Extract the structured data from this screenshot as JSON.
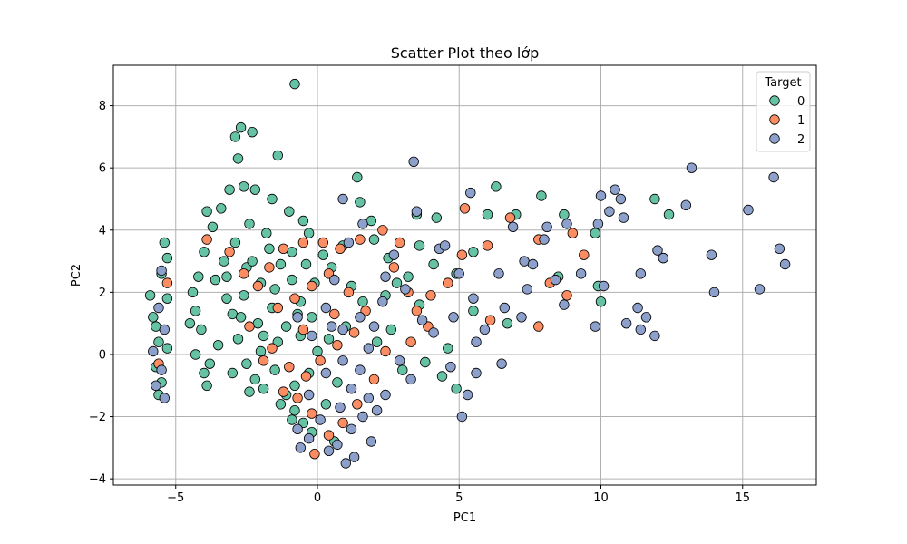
{
  "chart_data": {
    "type": "scatter",
    "title": "Scatter Plot theo lớp",
    "xlabel": "PC1",
    "ylabel": "PC2",
    "xlim": [
      -7.2,
      17.6
    ],
    "ylim": [
      -4.2,
      9.3
    ],
    "xticks": [
      -5,
      0,
      5,
      10,
      15
    ],
    "yticks": [
      -4,
      -2,
      0,
      2,
      4,
      6,
      8
    ],
    "xtick_labels": [
      "−5",
      "0",
      "5",
      "10",
      "15"
    ],
    "ytick_labels": [
      "−4",
      "−2",
      "0",
      "2",
      "4",
      "6",
      "8"
    ],
    "grid": true,
    "legend": {
      "title": "Target",
      "position": "top-right",
      "entries": [
        "0",
        "1",
        "2"
      ]
    },
    "series": [
      {
        "name": "0",
        "color": "#66c2a5",
        "points": [
          [
            -0.8,
            8.7
          ],
          [
            -2.7,
            7.3
          ],
          [
            -2.9,
            7.0
          ],
          [
            -2.3,
            7.15
          ],
          [
            -2.8,
            6.3
          ],
          [
            -1.4,
            6.4
          ],
          [
            1.4,
            5.7
          ],
          [
            6.3,
            5.4
          ],
          [
            7.9,
            5.1
          ],
          [
            11.9,
            5.0
          ],
          [
            12.4,
            4.5
          ],
          [
            12.2,
            3.1
          ],
          [
            3.5,
            4.5
          ],
          [
            4.2,
            4.4
          ],
          [
            6.0,
            4.5
          ],
          [
            7.0,
            4.5
          ],
          [
            8.7,
            4.5
          ],
          [
            9.8,
            3.9
          ],
          [
            9.9,
            2.2
          ],
          [
            8.5,
            2.5
          ],
          [
            10.0,
            1.7
          ],
          [
            5.5,
            3.3
          ],
          [
            3.6,
            3.5
          ],
          [
            4.1,
            2.9
          ],
          [
            3.2,
            2.5
          ],
          [
            2.8,
            2.3
          ],
          [
            2.4,
            1.9
          ],
          [
            6.7,
            1.0
          ],
          [
            5.5,
            1.4
          ],
          [
            4.6,
            0.2
          ],
          [
            4.4,
            -0.7
          ],
          [
            3.8,
            -0.25
          ],
          [
            4.9,
            -1.1
          ],
          [
            3.6,
            1.6
          ],
          [
            4.9,
            2.6
          ],
          [
            -5.9,
            1.9
          ],
          [
            -5.8,
            1.2
          ],
          [
            -5.7,
            0.9
          ],
          [
            -5.6,
            0.4
          ],
          [
            -5.7,
            -0.4
          ],
          [
            -5.6,
            -1.3
          ],
          [
            -5.4,
            3.6
          ],
          [
            -5.3,
            3.1
          ],
          [
            -5.5,
            2.6
          ],
          [
            -5.3,
            1.8
          ],
          [
            -5.3,
            0.2
          ],
          [
            -5.5,
            -0.9
          ],
          [
            -4.4,
            2.0
          ],
          [
            -4.3,
            1.4
          ],
          [
            -4.1,
            0.8
          ],
          [
            -4.3,
            0.0
          ],
          [
            -4.0,
            -0.6
          ],
          [
            -3.9,
            -1.0
          ],
          [
            -4.0,
            3.3
          ],
          [
            -3.7,
            4.1
          ],
          [
            -3.4,
            4.7
          ],
          [
            -3.1,
            5.3
          ],
          [
            -2.6,
            5.4
          ],
          [
            -2.2,
            5.3
          ],
          [
            -1.6,
            5.0
          ],
          [
            -1.0,
            4.6
          ],
          [
            -0.5,
            4.3
          ],
          [
            -0.3,
            3.9
          ],
          [
            -3.6,
            2.4
          ],
          [
            -3.2,
            1.8
          ],
          [
            -3.0,
            1.3
          ],
          [
            -2.8,
            0.5
          ],
          [
            -2.5,
            -0.3
          ],
          [
            -2.2,
            -0.8
          ],
          [
            -1.9,
            -1.1
          ],
          [
            -1.5,
            -0.5
          ],
          [
            -1.1,
            -1.3
          ],
          [
            -0.8,
            -1.8
          ],
          [
            -0.5,
            -2.2
          ],
          [
            -0.9,
            -2.1
          ],
          [
            -1.3,
            -1.6
          ],
          [
            0.2,
            3.2
          ],
          [
            -2.9,
            3.6
          ],
          [
            -2.5,
            2.8
          ],
          [
            -2.0,
            2.3
          ],
          [
            -1.7,
            3.4
          ],
          [
            -1.3,
            2.9
          ],
          [
            -0.9,
            2.4
          ],
          [
            -0.6,
            1.7
          ],
          [
            -0.2,
            1.2
          ],
          [
            -0.6,
            0.6
          ],
          [
            -1.1,
            0.9
          ],
          [
            -1.6,
            1.5
          ],
          [
            -2.1,
            1.0
          ],
          [
            -2.6,
            1.9
          ],
          [
            -3.3,
            3.0
          ],
          [
            -3.5,
            0.3
          ],
          [
            -3.0,
            -0.6
          ],
          [
            -2.0,
            0.1
          ],
          [
            -1.4,
            0.4
          ],
          [
            -0.1,
            2.3
          ],
          [
            0.5,
            2.8
          ],
          [
            1.2,
            2.2
          ],
          [
            1.6,
            1.7
          ],
          [
            1.0,
            0.9
          ],
          [
            0.4,
            0.5
          ],
          [
            0.0,
            0.1
          ],
          [
            -0.3,
            -0.6
          ],
          [
            0.7,
            -0.9
          ],
          [
            1.5,
            4.9
          ],
          [
            2.0,
            3.7
          ],
          [
            2.5,
            3.1
          ],
          [
            1.9,
            4.3
          ],
          [
            -2.4,
            4.2
          ],
          [
            -3.9,
            4.6
          ],
          [
            -4.5,
            1.0
          ],
          [
            -3.8,
            -0.3
          ],
          [
            -2.4,
            -1.2
          ],
          [
            -1.8,
            3.9
          ],
          [
            -0.9,
            3.3
          ],
          [
            -0.4,
            2.9
          ],
          [
            0.9,
            3.5
          ],
          [
            -3.2,
            2.5
          ],
          [
            -2.3,
            3.0
          ],
          [
            -1.5,
            2.1
          ],
          [
            -0.7,
            1.3
          ],
          [
            -1.9,
            0.6
          ],
          [
            -2.7,
            1.2
          ],
          [
            -4.2,
            2.5
          ],
          [
            2.1,
            0.4
          ],
          [
            3.0,
            -0.5
          ],
          [
            2.6,
            0.8
          ],
          [
            -0.8,
            -1.0
          ],
          [
            0.3,
            -1.6
          ],
          [
            -0.2,
            -2.5
          ],
          [
            0.6,
            -2.8
          ]
        ]
      },
      {
        "name": "1",
        "color": "#fc8d62",
        "points": [
          [
            5.2,
            4.7
          ],
          [
            6.8,
            4.4
          ],
          [
            6.0,
            3.5
          ],
          [
            7.8,
            3.7
          ],
          [
            9.0,
            3.9
          ],
          [
            9.4,
            3.2
          ],
          [
            8.2,
            2.3
          ],
          [
            8.8,
            1.9
          ],
          [
            7.8,
            0.9
          ],
          [
            6.1,
            1.1
          ],
          [
            5.1,
            3.2
          ],
          [
            4.6,
            2.3
          ],
          [
            4.0,
            1.9
          ],
          [
            3.5,
            1.4
          ],
          [
            3.9,
            0.9
          ],
          [
            3.3,
            0.4
          ],
          [
            2.9,
            3.6
          ],
          [
            2.3,
            4.0
          ],
          [
            1.5,
            3.7
          ],
          [
            0.8,
            3.4
          ],
          [
            0.2,
            3.6
          ],
          [
            -0.5,
            3.6
          ],
          [
            -1.2,
            3.4
          ],
          [
            -1.7,
            2.8
          ],
          [
            -2.1,
            2.2
          ],
          [
            -2.6,
            2.6
          ],
          [
            -3.1,
            3.3
          ],
          [
            -3.9,
            3.7
          ],
          [
            -1.4,
            1.5
          ],
          [
            -0.8,
            1.8
          ],
          [
            -0.2,
            2.2
          ],
          [
            0.4,
            2.6
          ],
          [
            1.1,
            2.0
          ],
          [
            1.7,
            1.4
          ],
          [
            1.3,
            0.7
          ],
          [
            0.7,
            0.3
          ],
          [
            0.1,
            -0.2
          ],
          [
            -0.4,
            -0.7
          ],
          [
            -1.0,
            -0.4
          ],
          [
            -1.6,
            0.2
          ],
          [
            -0.7,
            -1.4
          ],
          [
            -0.2,
            -1.9
          ],
          [
            -0.1,
            -3.2
          ],
          [
            0.4,
            -2.6
          ],
          [
            0.9,
            -2.2
          ],
          [
            1.4,
            -1.6
          ],
          [
            2.0,
            -0.8
          ],
          [
            2.4,
            0.1
          ],
          [
            -2.4,
            0.9
          ],
          [
            -1.9,
            -0.2
          ],
          [
            -5.3,
            2.3
          ],
          [
            -5.6,
            -0.3
          ],
          [
            -1.2,
            -1.2
          ],
          [
            0.6,
            1.3
          ],
          [
            -0.5,
            0.8
          ],
          [
            2.7,
            2.8
          ],
          [
            3.2,
            2.0
          ]
        ]
      },
      {
        "name": "2",
        "color": "#8da0cb",
        "points": [
          [
            13.2,
            6.0
          ],
          [
            16.1,
            5.7
          ],
          [
            15.2,
            4.65
          ],
          [
            13.0,
            4.8
          ],
          [
            10.7,
            5.0
          ],
          [
            10.5,
            5.3
          ],
          [
            10.0,
            5.1
          ],
          [
            10.3,
            4.6
          ],
          [
            10.8,
            4.4
          ],
          [
            9.9,
            4.2
          ],
          [
            8.8,
            4.2
          ],
          [
            8.1,
            4.1
          ],
          [
            12.0,
            3.35
          ],
          [
            12.2,
            3.1
          ],
          [
            13.9,
            3.2
          ],
          [
            16.3,
            3.4
          ],
          [
            16.5,
            2.9
          ],
          [
            11.4,
            2.6
          ],
          [
            15.6,
            2.1
          ],
          [
            14.0,
            2.0
          ],
          [
            11.3,
            1.5
          ],
          [
            11.6,
            1.2
          ],
          [
            10.9,
            1.0
          ],
          [
            11.4,
            0.8
          ],
          [
            11.9,
            0.6
          ],
          [
            9.8,
            0.9
          ],
          [
            10.1,
            2.2
          ],
          [
            9.3,
            2.6
          ],
          [
            8.4,
            2.4
          ],
          [
            7.4,
            2.1
          ],
          [
            6.4,
            2.6
          ],
          [
            5.5,
            1.8
          ],
          [
            4.8,
            1.2
          ],
          [
            5.6,
            0.4
          ],
          [
            6.5,
            -0.3
          ],
          [
            5.6,
            -0.6
          ],
          [
            5.3,
            -1.3
          ],
          [
            5.1,
            -2.0
          ],
          [
            4.7,
            -0.4
          ],
          [
            4.1,
            0.7
          ],
          [
            3.5,
            4.6
          ],
          [
            3.4,
            6.2
          ],
          [
            5.4,
            5.2
          ],
          [
            4.3,
            3.4
          ],
          [
            2.7,
            3.2
          ],
          [
            3.1,
            2.1
          ],
          [
            2.3,
            1.7
          ],
          [
            2.0,
            0.9
          ],
          [
            1.8,
            0.2
          ],
          [
            1.5,
            -0.5
          ],
          [
            1.2,
            -1.1
          ],
          [
            1.8,
            -1.4
          ],
          [
            2.4,
            -1.3
          ],
          [
            1.6,
            -2.0
          ],
          [
            1.2,
            -2.4
          ],
          [
            0.7,
            -2.9
          ],
          [
            1.3,
            -3.3
          ],
          [
            1.0,
            -3.5
          ],
          [
            0.4,
            -3.1
          ],
          [
            -0.3,
            -2.7
          ],
          [
            -0.7,
            -2.4
          ],
          [
            -0.3,
            -1.3
          ],
          [
            0.3,
            -0.6
          ],
          [
            0.9,
            -0.2
          ],
          [
            0.9,
            0.8
          ],
          [
            0.3,
            1.5
          ],
          [
            -0.2,
            0.6
          ],
          [
            -0.7,
            1.2
          ],
          [
            0.6,
            2.4
          ],
          [
            1.1,
            3.6
          ],
          [
            0.9,
            5.0
          ],
          [
            1.6,
            4.2
          ],
          [
            -5.5,
            2.7
          ],
          [
            -5.6,
            1.5
          ],
          [
            -5.8,
            0.1
          ],
          [
            -5.5,
            -0.5
          ],
          [
            -5.4,
            -1.4
          ],
          [
            -5.7,
            -1.0
          ],
          [
            -5.4,
            0.8
          ],
          [
            7.3,
            3.0
          ],
          [
            6.9,
            4.1
          ],
          [
            7.6,
            2.9
          ],
          [
            8.0,
            3.7
          ],
          [
            6.6,
            1.5
          ],
          [
            5.9,
            0.8
          ],
          [
            7.2,
            1.2
          ],
          [
            8.7,
            1.6
          ],
          [
            3.7,
            1.1
          ],
          [
            2.9,
            -0.2
          ],
          [
            3.3,
            -0.8
          ],
          [
            2.1,
            -1.8
          ],
          [
            0.1,
            -2.1
          ],
          [
            -0.6,
            -3.0
          ],
          [
            1.9,
            -2.8
          ],
          [
            0.8,
            -1.7
          ],
          [
            1.5,
            1.2
          ],
          [
            0.5,
            0.9
          ],
          [
            2.4,
            2.5
          ],
          [
            4.5,
            3.5
          ],
          [
            5.0,
            2.6
          ]
        ]
      }
    ]
  }
}
